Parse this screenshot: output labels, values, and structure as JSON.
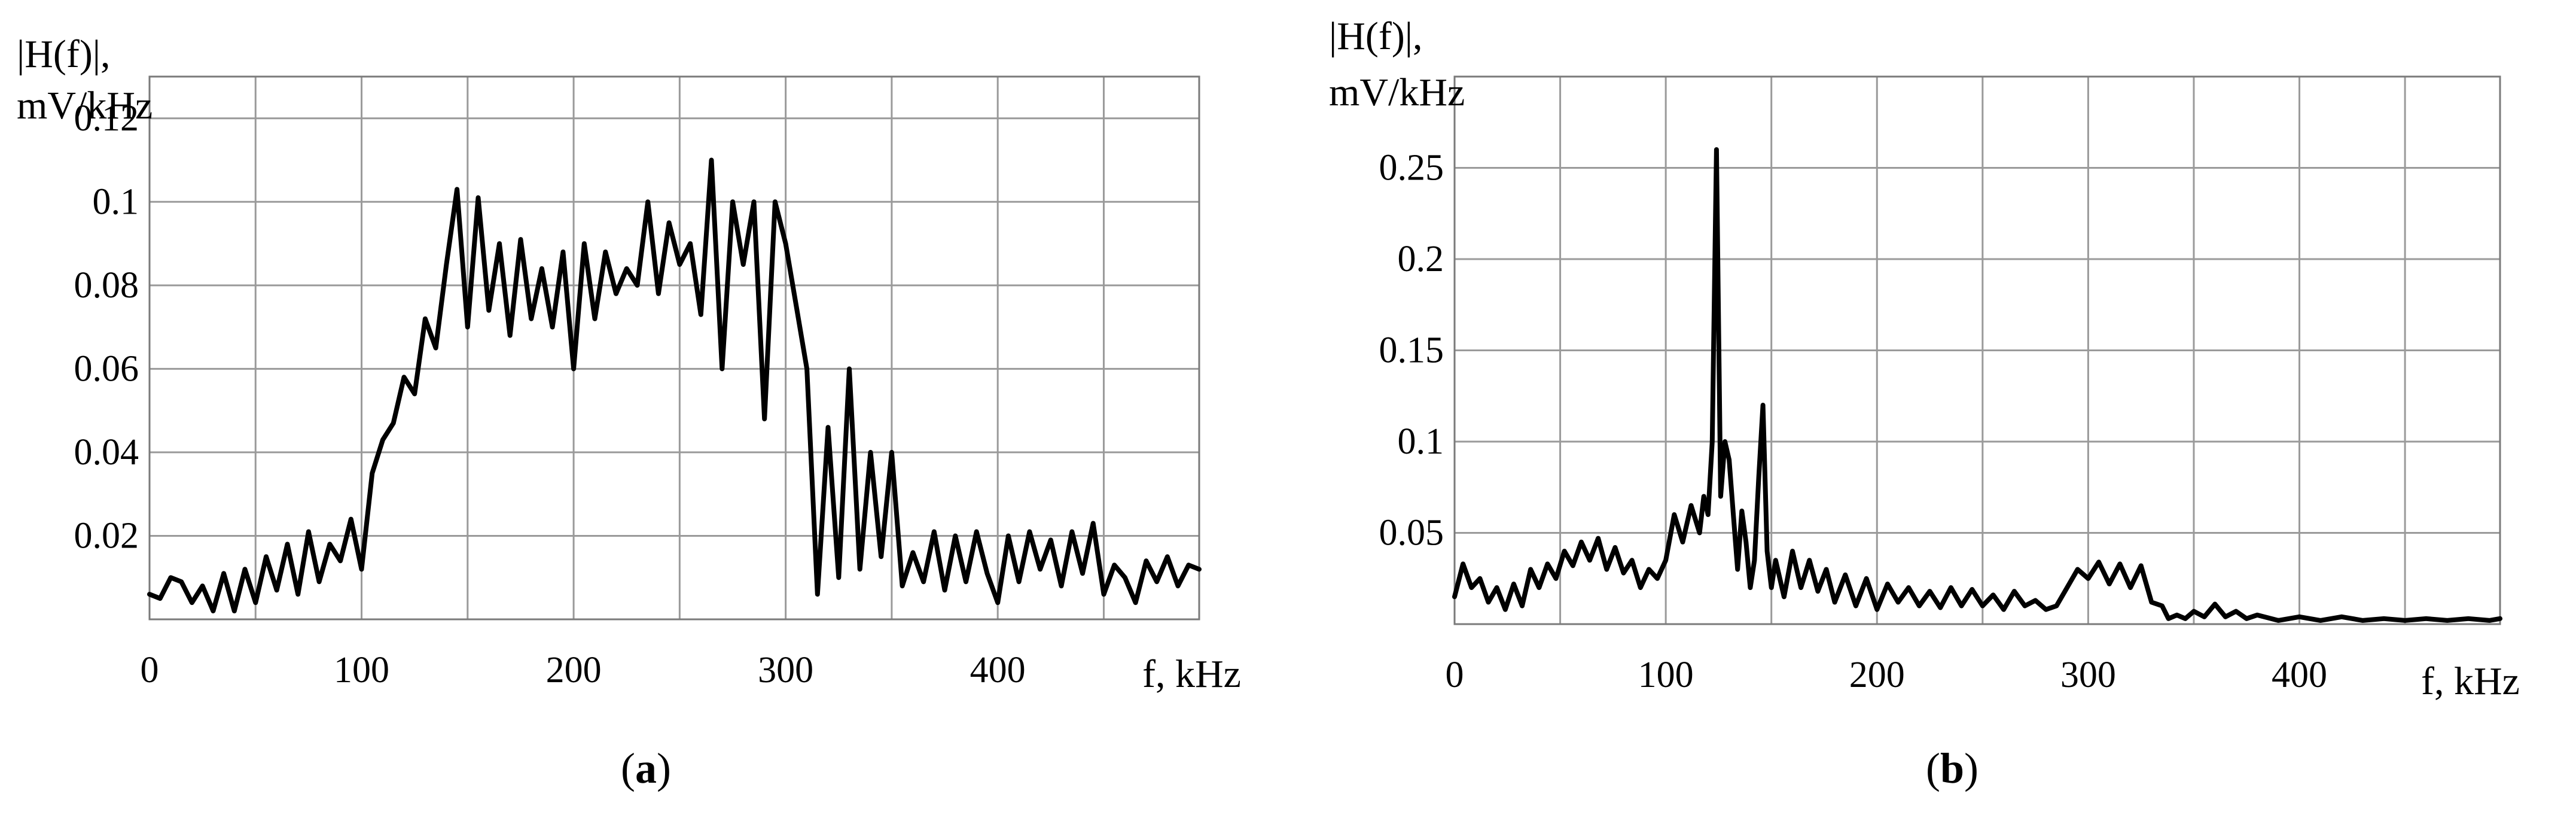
{
  "chart_data": [
    {
      "type": "line",
      "panel": "a",
      "caption_letter": "a",
      "ylabel_line1": "|H(f)|,",
      "ylabel_line2": "mV/kHz",
      "xlabel": "f, kHz",
      "xlim": [
        0,
        495
      ],
      "ylim": [
        0,
        0.13
      ],
      "xgrid": [
        0,
        50,
        100,
        150,
        200,
        250,
        300,
        350,
        400,
        450
      ],
      "ygrid": [
        0.02,
        0.04,
        0.06,
        0.08,
        0.1,
        0.12
      ],
      "xticks": [
        0,
        100,
        200,
        300,
        400
      ],
      "xtick_labels": [
        "0",
        "100",
        "200",
        "300",
        "400"
      ],
      "yticks": [
        0.02,
        0.04,
        0.06,
        0.08,
        0.1,
        0.12
      ],
      "ytick_labels": [
        "0.02",
        "0.04",
        "0.06",
        "0.08",
        "0.1",
        "0.12"
      ],
      "grid": true,
      "series": [
        {
          "x": [
            0,
            5,
            10,
            15,
            20,
            25,
            30,
            35,
            40,
            45,
            50,
            55,
            60,
            65,
            70,
            75,
            80,
            85,
            90,
            95,
            100,
            105,
            110,
            115,
            120,
            125,
            130,
            135,
            140,
            145,
            150,
            155,
            160,
            165,
            170,
            175,
            180,
            185,
            190,
            195,
            200,
            205,
            210,
            215,
            220,
            225,
            230,
            235,
            240,
            245,
            250,
            255,
            260,
            265,
            270,
            275,
            280,
            285,
            290,
            295,
            300,
            305,
            310,
            315,
            320,
            325,
            330,
            335,
            340,
            345,
            350,
            355,
            360,
            365,
            370,
            375,
            380,
            385,
            390,
            395,
            400,
            405,
            410,
            415,
            420,
            425,
            430,
            435,
            440,
            445,
            450,
            455,
            460,
            465,
            470,
            475,
            480,
            485,
            490,
            495
          ],
          "y": [
            0.006,
            0.005,
            0.01,
            0.009,
            0.004,
            0.008,
            0.002,
            0.011,
            0.002,
            0.012,
            0.004,
            0.015,
            0.007,
            0.018,
            0.006,
            0.021,
            0.009,
            0.018,
            0.014,
            0.024,
            0.012,
            0.035,
            0.043,
            0.047,
            0.058,
            0.054,
            0.072,
            0.065,
            0.085,
            0.103,
            0.07,
            0.101,
            0.074,
            0.09,
            0.068,
            0.091,
            0.072,
            0.084,
            0.07,
            0.088,
            0.06,
            0.09,
            0.072,
            0.088,
            0.078,
            0.084,
            0.08,
            0.1,
            0.078,
            0.095,
            0.085,
            0.09,
            0.073,
            0.11,
            0.06,
            0.1,
            0.085,
            0.1,
            0.048,
            0.1,
            0.09,
            0.075,
            0.06,
            0.006,
            0.046,
            0.01,
            0.06,
            0.012,
            0.04,
            0.015,
            0.04,
            0.008,
            0.016,
            0.009,
            0.021,
            0.007,
            0.02,
            0.009,
            0.021,
            0.011,
            0.004,
            0.02,
            0.009,
            0.021,
            0.012,
            0.019,
            0.008,
            0.021,
            0.011,
            0.023,
            0.006,
            0.013,
            0.01,
            0.004,
            0.014,
            0.009,
            0.015,
            0.008,
            0.013,
            0.012
          ]
        }
      ]
    },
    {
      "type": "line",
      "panel": "b",
      "caption_letter": "b",
      "ylabel_line1": "|H(f)|,",
      "ylabel_line2": "mV/kHz",
      "xlabel": "f, kHz",
      "xlim": [
        0,
        495
      ],
      "ylim": [
        0,
        0.3
      ],
      "xgrid": [
        0,
        50,
        100,
        150,
        200,
        250,
        300,
        350,
        400,
        450
      ],
      "ygrid": [
        0.05,
        0.1,
        0.15,
        0.2,
        0.25
      ],
      "xticks": [
        0,
        100,
        200,
        300,
        400
      ],
      "xtick_labels": [
        "0",
        "100",
        "200",
        "300",
        "400"
      ],
      "yticks": [
        0.05,
        0.1,
        0.15,
        0.2,
        0.25
      ],
      "ytick_labels": [
        "0.05",
        "0.1",
        "0.15",
        "0.2",
        "0.25"
      ],
      "grid": true,
      "series": [
        {
          "x": [
            0,
            4,
            8,
            12,
            16,
            20,
            24,
            28,
            32,
            36,
            40,
            44,
            48,
            52,
            56,
            60,
            64,
            68,
            72,
            76,
            80,
            84,
            88,
            92,
            96,
            100,
            104,
            108,
            112,
            116,
            118,
            120,
            122,
            124,
            126,
            128,
            130,
            132,
            134,
            136,
            138,
            140,
            142,
            144,
            146,
            148,
            150,
            152,
            156,
            160,
            164,
            168,
            172,
            176,
            180,
            185,
            190,
            195,
            200,
            205,
            210,
            215,
            220,
            225,
            230,
            235,
            240,
            245,
            250,
            255,
            260,
            265,
            270,
            275,
            280,
            285,
            290,
            295,
            300,
            305,
            310,
            315,
            320,
            325,
            330,
            335,
            338,
            342,
            346,
            350,
            355,
            360,
            365,
            370,
            375,
            380,
            390,
            400,
            410,
            420,
            430,
            440,
            450,
            460,
            470,
            480,
            490,
            495
          ],
          "y": [
            0.015,
            0.033,
            0.02,
            0.025,
            0.012,
            0.02,
            0.008,
            0.022,
            0.01,
            0.03,
            0.02,
            0.033,
            0.025,
            0.04,
            0.032,
            0.045,
            0.035,
            0.047,
            0.03,
            0.042,
            0.028,
            0.035,
            0.02,
            0.03,
            0.025,
            0.035,
            0.06,
            0.045,
            0.065,
            0.05,
            0.07,
            0.06,
            0.1,
            0.26,
            0.07,
            0.1,
            0.09,
            0.06,
            0.03,
            0.062,
            0.045,
            0.02,
            0.035,
            0.08,
            0.12,
            0.04,
            0.02,
            0.035,
            0.015,
            0.04,
            0.02,
            0.035,
            0.018,
            0.03,
            0.012,
            0.027,
            0.01,
            0.025,
            0.008,
            0.022,
            0.012,
            0.02,
            0.01,
            0.018,
            0.009,
            0.02,
            0.01,
            0.019,
            0.01,
            0.016,
            0.008,
            0.018,
            0.01,
            0.013,
            0.008,
            0.01,
            0.02,
            0.03,
            0.025,
            0.034,
            0.022,
            0.033,
            0.02,
            0.032,
            0.012,
            0.01,
            0.003,
            0.005,
            0.003,
            0.007,
            0.004,
            0.011,
            0.004,
            0.007,
            0.003,
            0.005,
            0.002,
            0.004,
            0.002,
            0.004,
            0.002,
            0.003,
            0.002,
            0.003,
            0.002,
            0.003,
            0.002,
            0.003
          ]
        }
      ]
    }
  ]
}
